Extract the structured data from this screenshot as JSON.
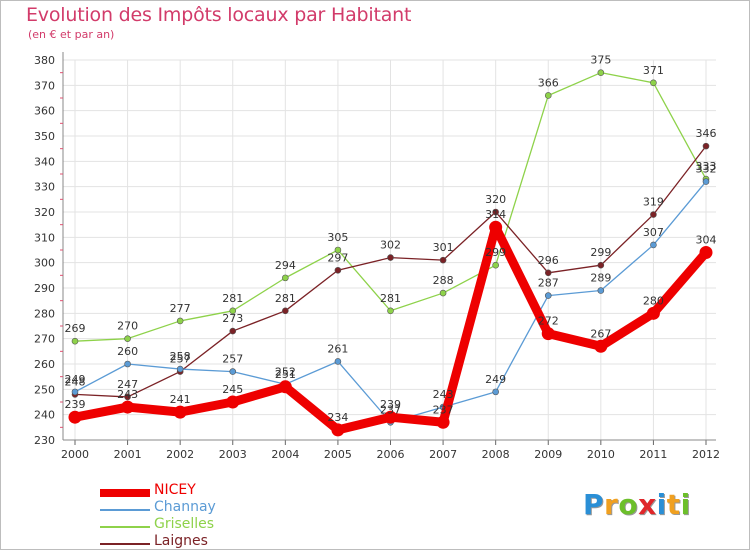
{
  "title": "Evolution des Impôts locaux par Habitant",
  "subtitle": "(en € et par an)",
  "logo": {
    "text": "Proxiti",
    "letter_colors": [
      "#2a8fd6",
      "#f0a020",
      "#6cbf2a",
      "#e0262a",
      "#2a8fd6",
      "#f0a020",
      "#6cbf2a"
    ]
  },
  "chart_data": {
    "type": "line",
    "title": "Evolution des Impôts locaux par Habitant",
    "subtitle": "(en € et par an)",
    "categories": [
      "2000",
      "2001",
      "2002",
      "2003",
      "2004",
      "2005",
      "2006",
      "2007",
      "2008",
      "2009",
      "2010",
      "2011",
      "2012"
    ],
    "ylim": [
      230,
      380
    ],
    "yticks": [
      230,
      240,
      250,
      260,
      270,
      280,
      290,
      300,
      310,
      320,
      330,
      340,
      350,
      360,
      370,
      380
    ],
    "grid": true,
    "legend_position": "bottom-left",
    "series": [
      {
        "name": "NICEY",
        "color": "#ee0000",
        "values": [
          239,
          243,
          241,
          245,
          251,
          234,
          239,
          237,
          314,
          272,
          267,
          280,
          304
        ],
        "labels": [
          "239",
          "243",
          "241",
          "245",
          "251",
          "234",
          "239",
          "237",
          "314",
          "272",
          "267",
          "280",
          "304"
        ]
      },
      {
        "name": "Channay",
        "color": "#5b9bd5",
        "values": [
          249,
          260,
          258,
          257,
          252,
          261,
          237,
          243,
          249,
          287,
          289,
          307,
          332
        ],
        "labels": [
          "249",
          "260",
          "258",
          "257",
          "252",
          "261",
          "237",
          "243",
          "249",
          "287",
          "289",
          "307",
          "332"
        ]
      },
      {
        "name": "Griselles",
        "color": "#8ed24a",
        "values": [
          269,
          270,
          277,
          281,
          294,
          305,
          281,
          288,
          299,
          366,
          375,
          371,
          333
        ],
        "labels": [
          "269",
          "270",
          "277",
          "281",
          "294",
          "305",
          "281",
          "288",
          "299",
          "366",
          "375",
          "371",
          "333"
        ]
      },
      {
        "name": "Laignes",
        "color": "#7b2226",
        "values": [
          248,
          247,
          257,
          273,
          281,
          297,
          302,
          301,
          320,
          296,
          299,
          319,
          346
        ],
        "labels": [
          "248",
          "247",
          "257",
          "273",
          "281",
          "297",
          "302",
          "301",
          "320",
          "296",
          "299",
          "319",
          "346"
        ]
      }
    ]
  }
}
